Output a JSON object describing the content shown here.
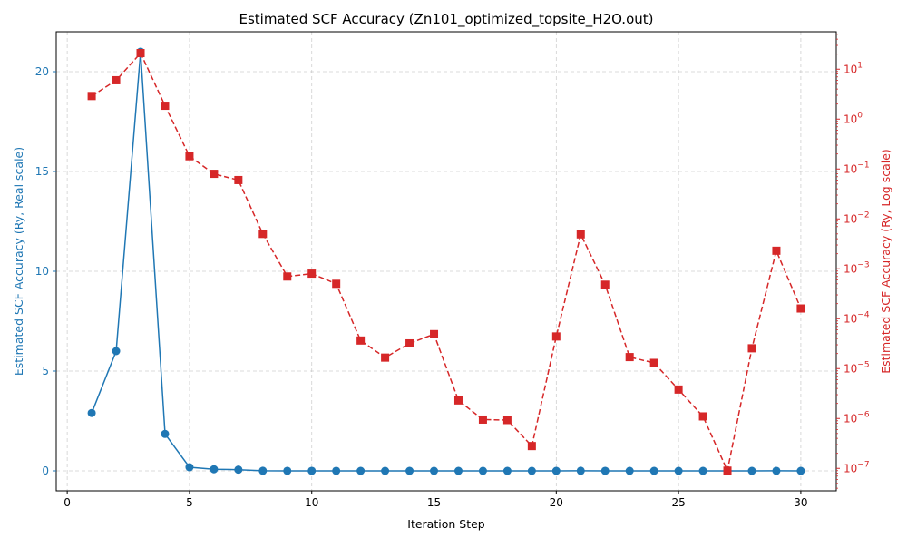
{
  "chart_data": {
    "type": "line",
    "title": "Estimated SCF Accuracy (Zn101_optimized_topsite_H2O.out)",
    "xlabel": "Iteration Step",
    "ylabel_left": "Estimated SCF Accuracy (Ry, Real scale)",
    "ylabel_right": "Estimated SCF Accuracy (Ry, Log scale)",
    "x": [
      1,
      2,
      3,
      4,
      5,
      6,
      7,
      8,
      9,
      10,
      11,
      12,
      13,
      14,
      15,
      16,
      17,
      18,
      19,
      20,
      21,
      22,
      23,
      24,
      25,
      26,
      27,
      28,
      29,
      30
    ],
    "xlim": [
      -0.45,
      31.45
    ],
    "xticks": [
      0,
      5,
      10,
      15,
      20,
      25,
      30
    ],
    "xtick_labels": [
      "0",
      "5",
      "10",
      "15",
      "20",
      "25",
      "30"
    ],
    "left_axis": {
      "scale": "linear",
      "ylim": [
        -1.0,
        22.0
      ],
      "ticks": [
        0,
        5,
        10,
        15,
        20
      ],
      "tick_labels": [
        "0",
        "5",
        "10",
        "15",
        "20"
      ],
      "color": "#1f77b4"
    },
    "right_axis": {
      "scale": "log",
      "ylim_exp": [
        -7.45,
        1.75
      ],
      "tick_exponents": [
        -7,
        -6,
        -5,
        -4,
        -3,
        -2,
        -1,
        0,
        1
      ],
      "tick_labels": [
        "10−7",
        "10−6",
        "10−5",
        "10−4",
        "10−3",
        "10−2",
        "10−1",
        "100",
        "101"
      ],
      "color": "#d62728"
    },
    "series": [
      {
        "axis": "left",
        "style": "solid",
        "marker": "circle",
        "color": "#1f77b4",
        "values": [
          2.9,
          6.0,
          21.0,
          1.85,
          0.18,
          0.08,
          0.06,
          0.005,
          0.0007,
          0.0008,
          0.0005,
          3.65e-05,
          1.66e-05,
          3.2e-05,
          4.9e-05,
          2.3e-06,
          9.5e-07,
          9.3e-07,
          2.8e-07,
          4.4e-05,
          0.0049,
          0.00048,
          1.7e-05,
          1.3e-05,
          3.8e-06,
          1.1e-06,
          9e-08,
          2.55e-05,
          0.0023,
          0.00016
        ]
      },
      {
        "axis": "right",
        "style": "dashed",
        "marker": "square",
        "color": "#d62728",
        "values": [
          2.9,
          6.0,
          21.0,
          1.85,
          0.18,
          0.08,
          0.06,
          0.005,
          0.0007,
          0.0008,
          0.0005,
          3.65e-05,
          1.66e-05,
          3.2e-05,
          4.9e-05,
          2.3e-06,
          9.5e-07,
          9.3e-07,
          2.8e-07,
          4.4e-05,
          0.0049,
          0.00048,
          1.7e-05,
          1.3e-05,
          3.8e-06,
          1.1e-06,
          9e-08,
          2.55e-05,
          0.0023,
          0.00016
        ]
      }
    ],
    "grid": true
  }
}
